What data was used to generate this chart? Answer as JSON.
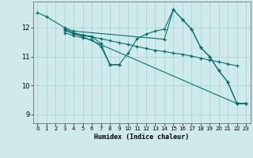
{
  "bg_color": "#ceeaea",
  "grid_color": "#a8cece",
  "line_color": "#006868",
  "marker": "+",
  "xlabel": "Humidex (Indice chaleur)",
  "xlim": [
    -0.5,
    23.5
  ],
  "ylim": [
    8.7,
    12.9
  ],
  "yticks": [
    9,
    10,
    11,
    12
  ],
  "xticks": [
    0,
    1,
    2,
    3,
    4,
    5,
    6,
    7,
    8,
    9,
    10,
    11,
    12,
    13,
    14,
    15,
    16,
    17,
    18,
    19,
    20,
    21,
    22,
    23
  ],
  "series": [
    {
      "x": [
        0,
        1,
        3,
        4,
        14,
        15,
        16,
        17,
        18,
        19,
        20,
        21,
        22,
        23
      ],
      "y": [
        12.52,
        12.38,
        12.0,
        11.88,
        11.6,
        12.62,
        12.28,
        11.95,
        11.32,
        11.0,
        10.52,
        10.12,
        9.38,
        9.38
      ]
    },
    {
      "x": [
        3,
        4,
        5,
        6,
        7,
        8,
        9,
        10,
        11,
        12,
        13,
        14,
        15,
        16,
        17,
        18,
        19,
        20,
        21,
        22,
        23
      ],
      "y": [
        11.95,
        11.82,
        11.75,
        11.7,
        11.45,
        10.72,
        10.72,
        11.12,
        11.62,
        11.78,
        11.88,
        11.95,
        12.62,
        12.28,
        11.95,
        11.32,
        11.0,
        10.52,
        10.12,
        9.38,
        9.38
      ]
    },
    {
      "x": [
        3,
        4,
        5,
        6,
        7,
        8,
        9,
        10,
        11,
        12,
        13,
        14,
        15,
        16,
        17,
        18,
        19,
        20,
        21,
        22
      ],
      "y": [
        11.9,
        11.78,
        11.72,
        11.68,
        11.62,
        11.55,
        11.48,
        11.42,
        11.35,
        11.28,
        11.22,
        11.18,
        11.12,
        11.08,
        11.02,
        10.95,
        10.88,
        10.82,
        10.75,
        10.68
      ]
    },
    {
      "x": [
        3,
        4,
        5,
        6,
        7,
        8,
        9
      ],
      "y": [
        11.82,
        11.72,
        11.65,
        11.58,
        11.35,
        10.72,
        10.72
      ]
    },
    {
      "x": [
        3,
        4,
        22,
        23
      ],
      "y": [
        11.95,
        11.82,
        9.38,
        9.38
      ]
    }
  ]
}
